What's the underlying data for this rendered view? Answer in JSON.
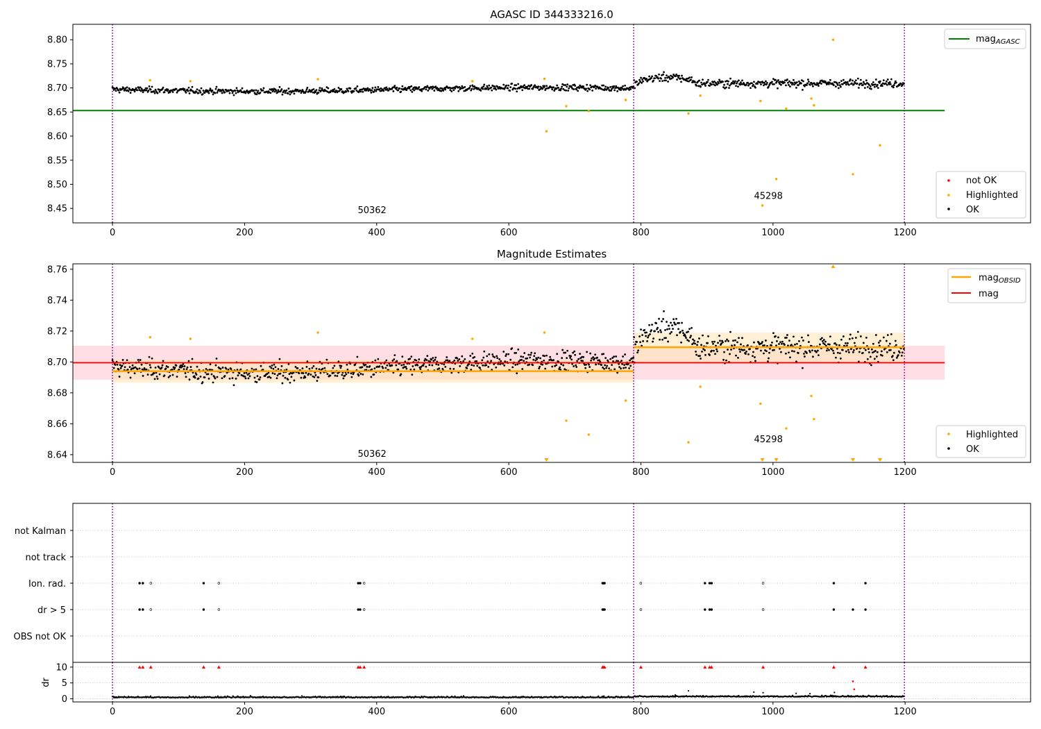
{
  "colors": {
    "ok": "#000000",
    "highlighted": "#FFA500",
    "not_ok": "#FF0000",
    "mag_agasc_line": "#008000",
    "mag_obsid_line": "#FFA500",
    "mag_line": "#FF0000",
    "mag_band": "#FFC0CB",
    "obsid_band": "#FFE4B5",
    "obsid_boundary": "#800080",
    "grid": "#b0b0b0"
  },
  "chart_data": [
    {
      "type": "scatter",
      "title": "AGASC ID 344333216.0",
      "xlim": [
        -60,
        1390
      ],
      "ylim": [
        8.42,
        8.832
      ],
      "xticks": [
        0,
        200,
        400,
        600,
        800,
        1000,
        1200
      ],
      "xtick_labels": [
        "0",
        "200",
        "400",
        "600",
        "800",
        "1000",
        "1200"
      ],
      "yticks": [
        8.45,
        8.5,
        8.55,
        8.6,
        8.65,
        8.7,
        8.75,
        8.8
      ],
      "ytick_labels": [
        "8.45",
        "8.50",
        "8.55",
        "8.60",
        "8.65",
        "8.70",
        "8.75",
        "8.80"
      ],
      "obsid_boundaries": [
        0,
        789,
        1199
      ],
      "obsid_labels": [
        {
          "text": "50362",
          "x": 393,
          "y": 8.4405
        },
        {
          "text": "45298",
          "x": 993,
          "y": 8.4695
        }
      ],
      "mag_agasc": 8.653,
      "mag_agasc_xrange": [
        -60,
        1260
      ],
      "highlighted_points": [
        {
          "x": 57,
          "y": 8.716
        },
        {
          "x": 118,
          "y": 8.714
        },
        {
          "x": 311,
          "y": 8.718
        },
        {
          "x": 545,
          "y": 8.714
        },
        {
          "x": 654,
          "y": 8.719
        },
        {
          "x": 657,
          "y": 8.61
        },
        {
          "x": 687,
          "y": 8.662
        },
        {
          "x": 721,
          "y": 8.652
        },
        {
          "x": 777,
          "y": 8.675
        },
        {
          "x": 872,
          "y": 8.647
        },
        {
          "x": 890,
          "y": 8.684
        },
        {
          "x": 981,
          "y": 8.673
        },
        {
          "x": 984,
          "y": 8.456
        },
        {
          "x": 1005,
          "y": 8.511
        },
        {
          "x": 1020,
          "y": 8.657
        },
        {
          "x": 1058,
          "y": 8.678
        },
        {
          "x": 1062,
          "y": 8.664
        },
        {
          "x": 1091,
          "y": 8.8
        },
        {
          "x": 1121,
          "y": 8.521
        },
        {
          "x": 1162,
          "y": 8.581
        }
      ],
      "legends": [
        {
          "position": "upper right",
          "entries": [
            {
              "label": "mag",
              "subscript": "AGASC",
              "marker": "line",
              "color": "#008000"
            }
          ]
        },
        {
          "position": "lower right",
          "entries": [
            {
              "label": "not OK",
              "marker": "dot",
              "color": "#FF0000"
            },
            {
              "label": "Highlighted",
              "marker": "dot",
              "color": "#FFA500"
            },
            {
              "label": "OK",
              "marker": "dot",
              "color": "#000000"
            }
          ]
        }
      ]
    },
    {
      "type": "scatter",
      "title": "Magnitude Estimates",
      "xlim": [
        -60,
        1390
      ],
      "ylim": [
        8.635,
        8.7635
      ],
      "xticks": [
        0,
        200,
        400,
        600,
        800,
        1000,
        1200
      ],
      "xtick_labels": [
        "0",
        "200",
        "400",
        "600",
        "800",
        "1000",
        "1200"
      ],
      "yticks": [
        8.64,
        8.66,
        8.68,
        8.7,
        8.72,
        8.74,
        8.76
      ],
      "ytick_labels": [
        "8.64",
        "8.66",
        "8.68",
        "8.70",
        "8.72",
        "8.74",
        "8.76"
      ],
      "obsid_boundaries": [
        0,
        789,
        1199
      ],
      "obsid_labels": [
        {
          "text": "50362",
          "x": 393,
          "y": 8.6385
        },
        {
          "text": "45298",
          "x": 993,
          "y": 8.648
        }
      ],
      "mag": {
        "value": 8.6995,
        "band": [
          8.6885,
          8.7105
        ],
        "xrange": [
          -60,
          1260
        ]
      },
      "mag_obsid": [
        {
          "xrange": [
            0,
            789
          ],
          "value": 8.694,
          "band": [
            8.6865,
            8.7015
          ]
        },
        {
          "xrange": [
            789,
            1199
          ],
          "value": 8.7095,
          "band": [
            8.6995,
            8.719
          ]
        }
      ],
      "highlighted_points": [
        {
          "x": 57,
          "y": 8.716
        },
        {
          "x": 118,
          "y": 8.715
        },
        {
          "x": 311,
          "y": 8.719
        },
        {
          "x": 545,
          "y": 8.715
        },
        {
          "x": 654,
          "y": 8.719
        },
        {
          "x": 687,
          "y": 8.662
        },
        {
          "x": 721,
          "y": 8.653
        },
        {
          "x": 777,
          "y": 8.675
        },
        {
          "x": 872,
          "y": 8.648
        },
        {
          "x": 890,
          "y": 8.684
        },
        {
          "x": 981,
          "y": 8.673
        },
        {
          "x": 1020,
          "y": 8.657
        },
        {
          "x": 1058,
          "y": 8.678
        },
        {
          "x": 1062,
          "y": 8.663
        }
      ],
      "out_of_range_down": [
        657,
        984,
        1005,
        1121,
        1162
      ],
      "out_of_range_up": [
        1091
      ],
      "legends": [
        {
          "position": "upper right",
          "entries": [
            {
              "label": "mag",
              "subscript": "OBSID",
              "marker": "line",
              "color": "#FFA500"
            },
            {
              "label": "mag",
              "marker": "line",
              "color": "#FF0000"
            }
          ]
        },
        {
          "position": "lower right",
          "entries": [
            {
              "label": "Highlighted",
              "marker": "dot",
              "color": "#FFA500"
            },
            {
              "label": "OK",
              "marker": "dot",
              "color": "#000000"
            }
          ]
        }
      ]
    },
    {
      "type": "scatter",
      "title": "",
      "xlim": [
        -60,
        1390
      ],
      "obsid_boundaries": [
        0,
        789,
        1199
      ],
      "categories": [
        "not Kalman",
        "not track",
        "Ion. rad.",
        "dr > 5",
        "OBS not OK"
      ],
      "flags": {
        "Ion. rad.": [
          41,
          46,
          58,
          138,
          161,
          372,
          375,
          381,
          742,
          743,
          745,
          800,
          897,
          904,
          907,
          985,
          1092,
          1140
        ],
        "dr > 5": [
          41,
          46,
          58,
          138,
          161,
          372,
          375,
          381,
          742,
          743,
          745,
          800,
          897,
          904,
          907,
          985,
          1092,
          1121,
          1140
        ]
      }
    },
    {
      "type": "scatter",
      "title": "",
      "xlim": [
        -60,
        1390
      ],
      "ylim": [
        -1,
        11.5
      ],
      "ylabel": "dr",
      "xticks": [
        0,
        200,
        400,
        600,
        800,
        1000,
        1200
      ],
      "xtick_labels": [
        "0",
        "200",
        "400",
        "600",
        "800",
        "1000",
        "1200"
      ],
      "yticks": [
        0,
        5,
        10
      ],
      "ytick_labels": [
        "0",
        "5",
        "10"
      ],
      "obsid_boundaries": [
        0,
        789,
        1199
      ],
      "capped_at_10": [
        41,
        46,
        58,
        138,
        161,
        372,
        375,
        381,
        742,
        743,
        745,
        800,
        897,
        904,
        907,
        985,
        1092,
        1140
      ],
      "other_red_points": [
        {
          "x": 1121,
          "y": 5.5
        },
        {
          "x": 1123,
          "y": 3.0
        }
      ],
      "outlier_points": [
        {
          "x": 852,
          "y": 1.2
        },
        {
          "x": 872,
          "y": 2.5
        },
        {
          "x": 971,
          "y": 2.1
        },
        {
          "x": 985,
          "y": 1.9
        },
        {
          "x": 1035,
          "y": 1.7
        },
        {
          "x": 1056,
          "y": 1.6
        },
        {
          "x": 1093,
          "y": 2.0
        }
      ]
    }
  ]
}
